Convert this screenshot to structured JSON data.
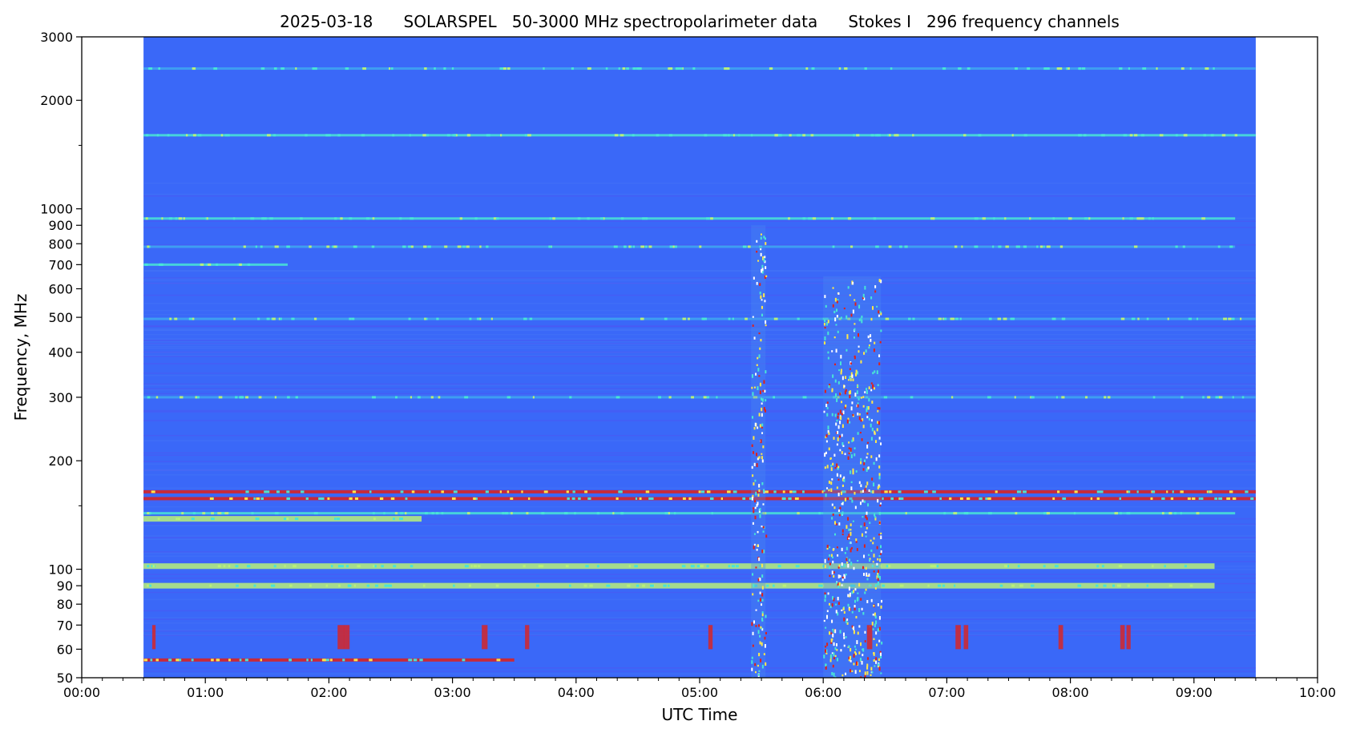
{
  "chart_data": {
    "type": "heatmap",
    "title": "2025-03-18      SOLARSPEL   50-3000 MHz spectropolarimeter data      Stokes I   296 frequency channels",
    "xlabel": "UTC Time",
    "ylabel": "Frequency, MHz",
    "x_scale": "time",
    "y_scale": "log",
    "xlim": [
      "00:00",
      "10:00"
    ],
    "ylim": [
      50,
      3000
    ],
    "x_ticks": [
      "00:00",
      "01:00",
      "02:00",
      "03:00",
      "04:00",
      "05:00",
      "06:00",
      "07:00",
      "08:00",
      "09:00",
      "10:00"
    ],
    "y_ticks": [
      50,
      60,
      70,
      80,
      90,
      100,
      200,
      300,
      400,
      500,
      600,
      700,
      800,
      900,
      1000,
      2000,
      3000
    ],
    "data_time_range": [
      "00:30",
      "09:30"
    ],
    "grid": false,
    "colors": {
      "background": "#3a68f8",
      "enhanced": "#3fa8f0",
      "strong": "#49e5d6",
      "very_strong": "#b8f07a",
      "peak": "#e0201a",
      "low": "#5a4cf0"
    },
    "horizontal_bands": [
      {
        "freq": 2450,
        "start": "00:30",
        "end": "09:30",
        "level": "enhanced"
      },
      {
        "freq": 1600,
        "start": "00:30",
        "end": "09:30",
        "level": "strong"
      },
      {
        "freq": 940,
        "start": "00:30",
        "end": "09:20",
        "level": "strong"
      },
      {
        "freq": 785,
        "start": "00:30",
        "end": "09:20",
        "level": "enhanced"
      },
      {
        "freq": 700,
        "start": "00:30",
        "end": "01:40",
        "level": "strong"
      },
      {
        "freq": 495,
        "start": "00:30",
        "end": "09:30",
        "level": "enhanced"
      },
      {
        "freq": 300,
        "start": "00:30",
        "end": "09:30",
        "level": "enhanced"
      },
      {
        "freq": 164,
        "start": "00:30",
        "end": "09:30",
        "level": "peak"
      },
      {
        "freq": 157,
        "start": "00:30",
        "end": "09:30",
        "level": "peak"
      },
      {
        "freq": 143,
        "start": "00:30",
        "end": "09:20",
        "level": "strong"
      },
      {
        "freq": 138,
        "start": "00:30",
        "end": "02:45",
        "level": "very_strong"
      },
      {
        "freq": 102,
        "start": "00:30",
        "end": "09:10",
        "level": "very_strong"
      },
      {
        "freq": 90,
        "start": "00:30",
        "end": "09:10",
        "level": "very_strong"
      },
      {
        "freq": 56,
        "start": "00:30",
        "end": "03:30",
        "level": "peak"
      }
    ],
    "bursts": [
      {
        "start": "05:25",
        "end": "05:32",
        "freq_low": 50,
        "freq_high": 900
      },
      {
        "start": "06:00",
        "end": "06:28",
        "freq_low": 50,
        "freq_high": 650
      }
    ]
  }
}
